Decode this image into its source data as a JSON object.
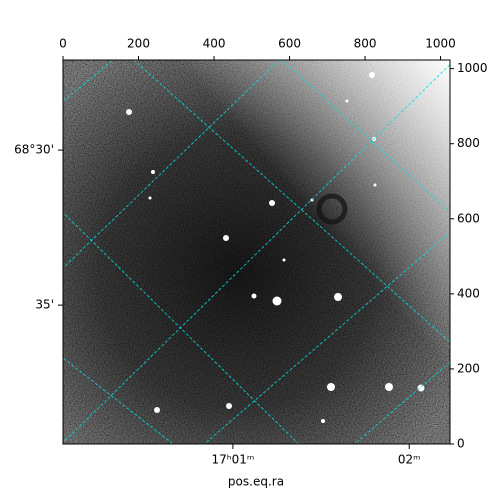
{
  "chart_data": {
    "type": "image",
    "xlabel": "pos.eq.ra",
    "xlim": [
      0,
      1025
    ],
    "ylim": [
      0,
      1023
    ],
    "xticks": [
      0,
      200,
      400,
      600,
      800,
      1000
    ],
    "yticks": [
      0,
      200,
      400,
      600,
      800,
      1000
    ],
    "ra_ticks": [
      {
        "value": 450,
        "label": "17ʰ01ᵐ"
      },
      {
        "value": 917,
        "label": "02ᵐ"
      }
    ],
    "dec_ticks": [
      {
        "value": 783,
        "label": "68°30'"
      },
      {
        "value": 370,
        "label": "35'"
      }
    ],
    "grid_color": "#00e0e0"
  }
}
